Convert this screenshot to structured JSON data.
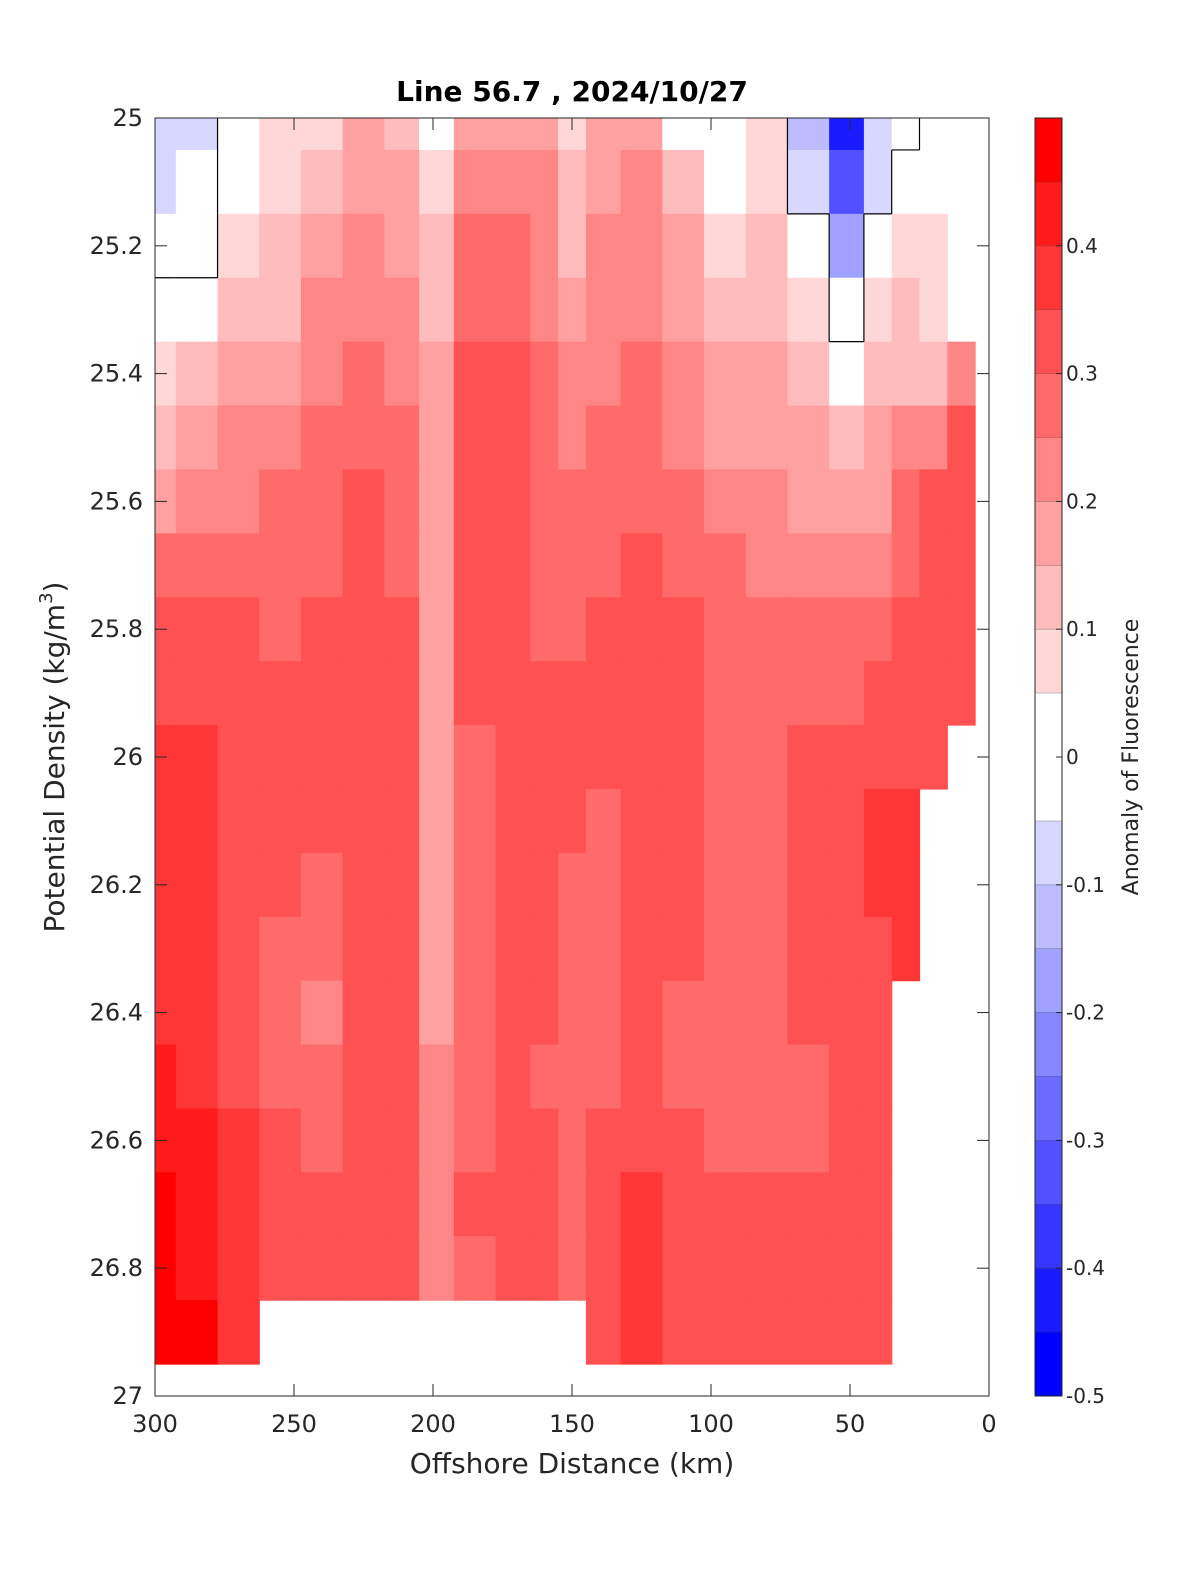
{
  "chart_data": {
    "type": "heatmap",
    "title": "Line 56.7 , 2024/10/27",
    "xlabel": "Offshore Distance (km)",
    "ylabel_prefix": "Potential Density (kg/m",
    "ylabel_sup": "3",
    "ylabel_suffix": ")",
    "colorbar_label": "Anomaly of Fluorescence",
    "xlim": [
      300,
      0
    ],
    "ylim": [
      25,
      27
    ],
    "x_reversed": true,
    "y_reversed": true,
    "xticks": [
      300,
      250,
      200,
      150,
      100,
      50,
      0
    ],
    "xtick_labels": [
      "300",
      "250",
      "200",
      "150",
      "100",
      "50",
      "0"
    ],
    "yticks": [
      25,
      25.2,
      25.4,
      25.6,
      25.8,
      26,
      26.2,
      26.4,
      26.6,
      26.8,
      27
    ],
    "ytick_labels": [
      "25",
      "25.2",
      "25.4",
      "25.6",
      "25.8",
      "26",
      "26.2",
      "26.4",
      "26.6",
      "26.8",
      "27"
    ],
    "colorbar_ticks": [
      0.4,
      0.3,
      0.2,
      0.1,
      0,
      -0.1,
      -0.2,
      -0.3,
      -0.4,
      -0.5
    ],
    "colorbar_tick_labels": [
      "0.4",
      "0.3",
      "0.2",
      "0.1",
      "0",
      "-0.1",
      "-0.2",
      "-0.3",
      "-0.4",
      "-0.5"
    ],
    "colorbar_range": [
      -0.5,
      0.5
    ],
    "contour_levels": [
      -0.5,
      -0.45,
      -0.4,
      -0.35,
      -0.3,
      -0.25,
      -0.2,
      -0.15,
      -0.1,
      -0.05,
      0.05,
      0.1,
      0.15,
      0.2,
      0.25,
      0.3,
      0.35,
      0.4,
      0.45,
      0.5
    ],
    "colors": {
      "positive_max": "#ff0000",
      "negative_max": "#0000ff",
      "neutral": "#ffffff",
      "zero_contour_line": "#000000"
    },
    "grid": false,
    "fields": {
      "x_km": [
        300,
        285,
        270,
        255,
        240,
        225,
        210,
        200,
        185,
        170,
        160,
        150,
        140,
        125,
        110,
        95,
        80,
        65,
        50,
        40,
        30,
        20,
        10
      ],
      "density": [
        25.0,
        25.1,
        25.2,
        25.3,
        25.4,
        25.5,
        25.6,
        25.7,
        25.8,
        25.9,
        26.0,
        26.1,
        26.2,
        26.3,
        26.4,
        26.5,
        26.6,
        26.7,
        26.8,
        26.9
      ],
      "anomaly": [
        [
          -0.08,
          -0.07,
          0.02,
          0.06,
          0.08,
          0.15,
          0.12,
          0.03,
          0.18,
          0.15,
          0.18,
          0.08,
          0.15,
          0.18,
          0.05,
          0.03,
          0.06,
          -0.15,
          -0.45,
          -0.1,
          -0.02,
          0.0,
          null
        ],
        [
          -0.08,
          -0.05,
          0.04,
          0.08,
          0.12,
          0.18,
          0.15,
          0.06,
          0.23,
          0.2,
          0.2,
          0.1,
          0.18,
          0.2,
          0.1,
          0.05,
          0.08,
          -0.1,
          -0.35,
          -0.08,
          0.02,
          0.0,
          null
        ],
        [
          -0.04,
          -0.01,
          0.07,
          0.1,
          0.16,
          0.2,
          0.18,
          0.11,
          0.28,
          0.25,
          0.22,
          0.13,
          0.2,
          0.2,
          0.15,
          0.08,
          0.1,
          0.03,
          -0.2,
          0.02,
          0.06,
          0.06,
          null
        ],
        [
          0.0,
          0.05,
          0.11,
          0.14,
          0.2,
          0.23,
          0.2,
          0.13,
          0.28,
          0.28,
          0.22,
          0.17,
          0.22,
          0.22,
          0.17,
          0.1,
          0.12,
          0.08,
          -0.05,
          0.06,
          0.1,
          0.08,
          null
        ],
        [
          0.08,
          0.1,
          0.16,
          0.18,
          0.22,
          0.25,
          0.22,
          0.15,
          0.3,
          0.3,
          0.25,
          0.2,
          0.24,
          0.25,
          0.2,
          0.15,
          0.15,
          0.12,
          0.05,
          0.1,
          0.12,
          0.12,
          0.2
        ],
        [
          0.12,
          0.15,
          0.2,
          0.22,
          0.25,
          0.28,
          0.25,
          0.17,
          0.3,
          0.32,
          0.27,
          0.22,
          0.25,
          0.27,
          0.22,
          0.18,
          0.18,
          0.15,
          0.1,
          0.15,
          0.2,
          0.22,
          0.3
        ],
        [
          0.17,
          0.2,
          0.22,
          0.25,
          0.27,
          0.3,
          0.27,
          0.18,
          0.3,
          0.32,
          0.28,
          0.25,
          0.27,
          0.28,
          0.25,
          0.22,
          0.2,
          0.18,
          0.15,
          0.18,
          0.25,
          0.3,
          0.32
        ],
        [
          0.25,
          0.25,
          0.26,
          0.27,
          0.28,
          0.32,
          0.28,
          0.18,
          0.3,
          0.33,
          0.28,
          0.27,
          0.28,
          0.3,
          0.27,
          0.25,
          0.22,
          0.23,
          0.2,
          0.22,
          0.28,
          0.32,
          0.33
        ],
        [
          0.3,
          0.3,
          0.3,
          0.28,
          0.3,
          0.33,
          0.3,
          0.18,
          0.3,
          0.32,
          0.28,
          0.28,
          0.3,
          0.32,
          0.3,
          0.27,
          0.27,
          0.27,
          0.25,
          0.27,
          0.3,
          0.32,
          0.33
        ],
        [
          0.32,
          0.32,
          0.32,
          0.3,
          0.3,
          0.33,
          0.3,
          0.18,
          0.3,
          0.32,
          0.3,
          0.3,
          0.3,
          0.32,
          0.3,
          0.28,
          0.28,
          0.28,
          0.28,
          0.32,
          0.32,
          0.33,
          0.33
        ],
        [
          0.36,
          0.35,
          0.33,
          0.3,
          0.3,
          0.32,
          0.3,
          0.18,
          0.28,
          0.32,
          0.3,
          0.3,
          0.3,
          0.33,
          0.3,
          0.28,
          0.28,
          0.3,
          0.33,
          0.33,
          0.33,
          0.32,
          null
        ],
        [
          0.38,
          0.37,
          0.33,
          0.3,
          0.3,
          0.32,
          0.3,
          0.18,
          0.27,
          0.32,
          0.3,
          0.3,
          0.28,
          0.33,
          0.3,
          0.28,
          0.28,
          0.3,
          0.33,
          0.35,
          0.36,
          null,
          null
        ],
        [
          0.38,
          0.37,
          0.33,
          0.3,
          0.28,
          0.32,
          0.3,
          0.18,
          0.27,
          0.3,
          0.3,
          0.28,
          0.28,
          0.32,
          0.3,
          0.27,
          0.28,
          0.3,
          0.33,
          0.35,
          0.37,
          null,
          null
        ],
        [
          0.38,
          0.37,
          0.33,
          0.28,
          0.25,
          0.3,
          0.3,
          0.18,
          0.27,
          0.3,
          0.3,
          0.27,
          0.28,
          0.3,
          0.3,
          0.27,
          0.28,
          0.3,
          0.33,
          0.33,
          0.35,
          null,
          null
        ],
        [
          0.38,
          0.37,
          0.33,
          0.28,
          0.22,
          0.3,
          0.3,
          0.18,
          0.27,
          0.3,
          0.3,
          0.27,
          0.28,
          0.3,
          0.28,
          0.27,
          0.28,
          0.3,
          0.32,
          0.32,
          null,
          null,
          null
        ],
        [
          0.4,
          0.37,
          0.32,
          0.28,
          0.25,
          0.3,
          0.3,
          0.2,
          0.27,
          0.3,
          0.28,
          0.25,
          0.28,
          0.3,
          0.28,
          0.25,
          0.25,
          0.27,
          0.3,
          0.32,
          null,
          null,
          null
        ],
        [
          0.42,
          0.4,
          0.35,
          0.3,
          0.28,
          0.3,
          0.3,
          0.22,
          0.28,
          0.3,
          0.3,
          0.27,
          0.3,
          0.3,
          0.3,
          0.28,
          0.28,
          0.28,
          0.3,
          0.3,
          null,
          null,
          null
        ],
        [
          0.45,
          0.42,
          0.37,
          0.33,
          0.3,
          0.3,
          0.3,
          0.23,
          0.3,
          0.33,
          0.3,
          0.28,
          0.33,
          0.37,
          0.32,
          0.3,
          0.3,
          0.3,
          0.3,
          0.3,
          null,
          null,
          null
        ],
        [
          0.47,
          0.44,
          0.38,
          0.33,
          0.3,
          0.3,
          0.3,
          0.23,
          0.28,
          0.3,
          0.3,
          0.28,
          0.33,
          0.38,
          0.33,
          0.3,
          0.3,
          0.3,
          0.3,
          0.3,
          null,
          null,
          null
        ],
        [
          0.5,
          0.45,
          0.38,
          null,
          null,
          null,
          null,
          null,
          null,
          null,
          null,
          null,
          0.33,
          0.37,
          0.33,
          0.3,
          0.3,
          0.3,
          0.3,
          0.3,
          null,
          null,
          null
        ]
      ]
    }
  }
}
